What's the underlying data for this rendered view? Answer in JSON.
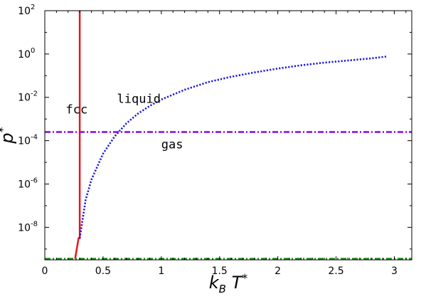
{
  "chart_data": {
    "type": "line",
    "xlabel": {
      "main": "k",
      "sub": "B",
      "var": " T",
      "sup": "*"
    },
    "ylabel": {
      "main": "p",
      "sup": "*"
    },
    "xlim": [
      0,
      3.15
    ],
    "ylim_log10": [
      -9.5,
      2
    ],
    "y_scale": "log",
    "x_ticks": [
      {
        "value": 0,
        "label": "0"
      },
      {
        "value": 0.5,
        "label": "0.5"
      },
      {
        "value": 1,
        "label": "1"
      },
      {
        "value": 1.5,
        "label": "1.5"
      },
      {
        "value": 2,
        "label": "2"
      },
      {
        "value": 2.5,
        "label": "2.5"
      },
      {
        "value": 3,
        "label": "3"
      }
    ],
    "y_ticks": [
      {
        "value": 2,
        "base": "10",
        "exp": "2"
      },
      {
        "value": 0,
        "base": "10",
        "exp": "0"
      },
      {
        "value": -2,
        "base": "10",
        "exp": "-2"
      },
      {
        "value": -4,
        "base": "10",
        "exp": "-4"
      },
      {
        "value": -6,
        "base": "10",
        "exp": "-6"
      },
      {
        "value": -8,
        "base": "10",
        "exp": "-8"
      }
    ],
    "series": [
      {
        "style": "solid",
        "color": "#e8151b",
        "x": [
          0.26,
          0.29,
          0.3,
          0.3
        ],
        "log10_y": [
          -9.45,
          -8.5,
          -8.5,
          2
        ]
      },
      {
        "style": "dotted",
        "color": "#1a1ae0",
        "x": [
          0.3,
          0.35,
          0.4,
          0.5,
          0.6,
          0.7,
          0.8,
          0.9,
          1.0,
          1.2,
          1.4,
          1.6,
          1.8,
          2.0,
          2.2,
          2.4,
          2.6,
          2.8,
          2.93
        ],
        "log10_y": [
          -8.5,
          -6.75,
          -5.8,
          -4.6,
          -3.8,
          -3.2,
          -2.75,
          -2.4,
          -2.1,
          -1.65,
          -1.3,
          -1.05,
          -0.85,
          -0.67,
          -0.52,
          -0.4,
          -0.3,
          -0.2,
          -0.12
        ]
      },
      {
        "style": "dashdot",
        "color": "#9010e0",
        "x": [
          0,
          3.15
        ],
        "log10_y": [
          -3.6,
          -3.6
        ]
      },
      {
        "style": "dashdot",
        "color": "#1d8a1d",
        "x": [
          0,
          3.15
        ],
        "log10_y": [
          -9.45,
          -9.45
        ]
      }
    ],
    "annotations": [
      {
        "text": "fcc",
        "x": 0.18,
        "log10_y": -2.75
      },
      {
        "text": "liquid",
        "x": 0.62,
        "log10_y": -2.25
      },
      {
        "text": "gas",
        "x": 1.0,
        "log10_y": -4.35
      }
    ]
  }
}
